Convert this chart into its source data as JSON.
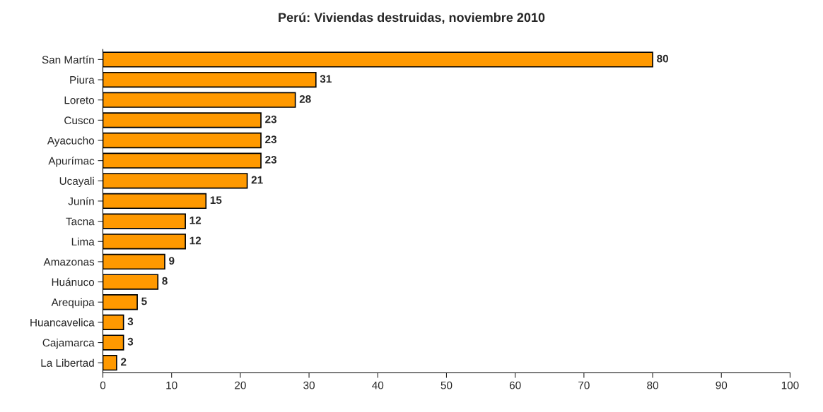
{
  "chart_data": {
    "type": "bar",
    "orientation": "horizontal",
    "title": "Perú: Viviendas destruidas, noviembre 2010",
    "categories": [
      "San Martín",
      "Piura",
      "Loreto",
      "Cusco",
      "Ayacucho",
      "Apurímac",
      "Ucayali",
      "Junín",
      "Tacna",
      "Lima",
      "Amazonas",
      "Huánuco",
      "Arequipa",
      "Huancavelica",
      "Cajamarca",
      "La Libertad"
    ],
    "values": [
      80,
      31,
      28,
      23,
      23,
      23,
      21,
      15,
      12,
      12,
      9,
      8,
      5,
      3,
      3,
      2
    ],
    "color": "#ff9900",
    "xlim": [
      0,
      100
    ],
    "xticks": [
      0,
      10,
      20,
      30,
      40,
      50,
      60,
      70,
      80,
      90,
      100
    ],
    "data_labels": true,
    "grid": false,
    "legend": false
  }
}
